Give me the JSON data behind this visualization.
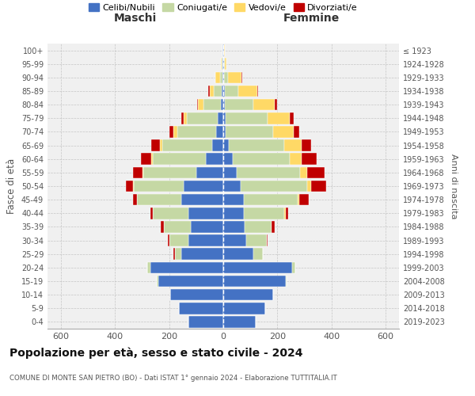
{
  "age_groups": [
    "0-4",
    "5-9",
    "10-14",
    "15-19",
    "20-24",
    "25-29",
    "30-34",
    "35-39",
    "40-44",
    "45-49",
    "50-54",
    "55-59",
    "60-64",
    "65-69",
    "70-74",
    "75-79",
    "80-84",
    "85-89",
    "90-94",
    "95-99",
    "100+"
  ],
  "birth_years": [
    "2019-2023",
    "2014-2018",
    "2009-2013",
    "2004-2008",
    "1999-2003",
    "1994-1998",
    "1989-1993",
    "1984-1988",
    "1979-1983",
    "1974-1978",
    "1969-1973",
    "1964-1968",
    "1959-1963",
    "1954-1958",
    "1949-1953",
    "1944-1948",
    "1939-1943",
    "1934-1938",
    "1929-1933",
    "1924-1928",
    "≤ 1923"
  ],
  "colors": {
    "celibi": "#4472c4",
    "coniugati": "#c5d8a4",
    "vedovi": "#ffd966",
    "divorziati": "#c00000"
  },
  "maschi": {
    "celibi": [
      130,
      165,
      195,
      240,
      270,
      155,
      130,
      120,
      130,
      155,
      145,
      100,
      65,
      40,
      25,
      20,
      8,
      5,
      3,
      2,
      2
    ],
    "coniugati": [
      0,
      0,
      0,
      5,
      10,
      25,
      70,
      100,
      130,
      165,
      185,
      195,
      195,
      185,
      145,
      115,
      65,
      30,
      10,
      3,
      1
    ],
    "vedovi": [
      0,
      0,
      0,
      0,
      0,
      0,
      0,
      0,
      0,
      0,
      5,
      5,
      5,
      10,
      15,
      10,
      20,
      15,
      15,
      3,
      1
    ],
    "divorziati": [
      0,
      0,
      0,
      0,
      0,
      5,
      5,
      10,
      10,
      15,
      25,
      35,
      40,
      30,
      15,
      10,
      5,
      5,
      0,
      0,
      0
    ]
  },
  "femmine": {
    "celibi": [
      120,
      155,
      185,
      230,
      255,
      110,
      85,
      80,
      75,
      75,
      65,
      50,
      35,
      20,
      10,
      10,
      5,
      5,
      3,
      2,
      2
    ],
    "coniugati": [
      0,
      0,
      0,
      5,
      10,
      35,
      75,
      100,
      150,
      200,
      245,
      235,
      210,
      205,
      175,
      155,
      105,
      50,
      15,
      3,
      1
    ],
    "vedovi": [
      0,
      0,
      0,
      0,
      0,
      0,
      0,
      0,
      5,
      5,
      15,
      25,
      45,
      65,
      75,
      80,
      80,
      70,
      50,
      8,
      3
    ],
    "divorziati": [
      0,
      0,
      0,
      0,
      0,
      0,
      5,
      10,
      10,
      35,
      55,
      65,
      55,
      35,
      20,
      15,
      10,
      5,
      3,
      0,
      0
    ]
  },
  "xlim": 650,
  "xlabel_ticks": [
    -600,
    -400,
    -200,
    0,
    200,
    400,
    600
  ],
  "title_main": "Popolazione per età, sesso e stato civile - 2024",
  "title_sub": "COMUNE DI MONTE SAN PIETRO (BO) - Dati ISTAT 1° gennaio 2024 - Elaborazione TUTTITALIA.IT",
  "label_maschi": "Maschi",
  "label_femmine": "Femmine",
  "ylabel": "Fasce di età",
  "ylabel_right": "Anni di nascita",
  "legend_labels": [
    "Celibi/Nubili",
    "Coniugati/e",
    "Vedovi/e",
    "Divorziati/e"
  ],
  "background_color": "#f0f0f0"
}
